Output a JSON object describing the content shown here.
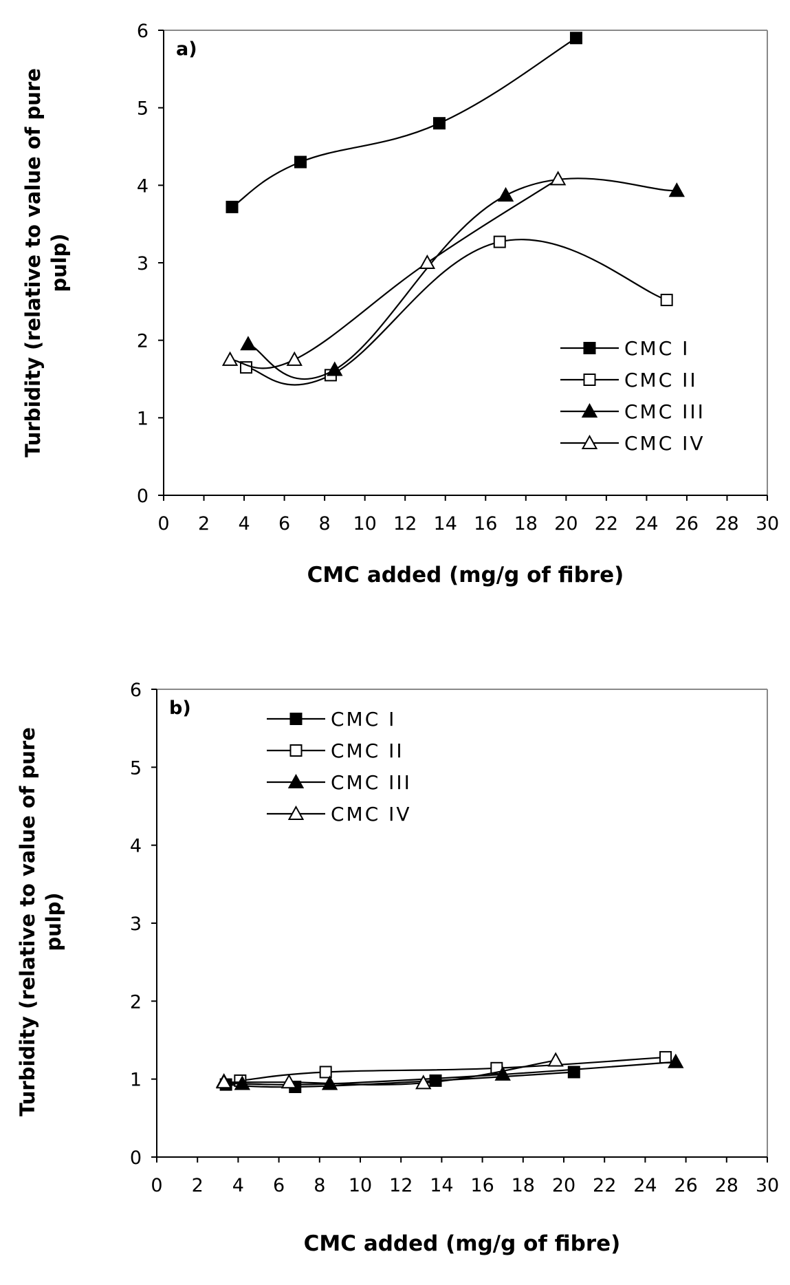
{
  "chart_data": [
    {
      "type": "line",
      "panel_label": "a)",
      "xlabel": "CMC added (mg/g of fibre)",
      "ylabel_lines": [
        "Turbidity (relative to value of pure",
        "pulp)"
      ],
      "xlim": [
        0,
        30
      ],
      "ylim": [
        0,
        6
      ],
      "xticks": [
        "0",
        "2",
        "4",
        "6",
        "8",
        "10",
        "12",
        "14",
        "16",
        "18",
        "20",
        "22",
        "24",
        "26",
        "28",
        "30"
      ],
      "yticks": [
        "0",
        "1",
        "2",
        "3",
        "4",
        "5",
        "6"
      ],
      "grid": false,
      "legend_position": "lower-right",
      "series": [
        {
          "name": "CMC I",
          "marker": "square-filled",
          "x": [
            3.4,
            6.8,
            13.7,
            20.5
          ],
          "y": [
            3.72,
            4.3,
            4.8,
            5.9
          ]
        },
        {
          "name": "CMC II",
          "marker": "square-open",
          "x": [
            4.1,
            8.3,
            16.7,
            25.0
          ],
          "y": [
            1.65,
            1.55,
            3.27,
            2.52
          ]
        },
        {
          "name": "CMC III",
          "marker": "triangle-filled",
          "x": [
            4.2,
            8.5,
            17.0,
            25.5
          ],
          "y": [
            1.95,
            1.62,
            3.87,
            3.93
          ]
        },
        {
          "name": "CMC IV",
          "marker": "triangle-open",
          "x": [
            3.3,
            6.5,
            13.1,
            19.6
          ],
          "y": [
            1.75,
            1.75,
            3.0,
            4.08
          ]
        }
      ]
    },
    {
      "type": "line",
      "panel_label": "b)",
      "xlabel": "CMC added (mg/g of fibre)",
      "ylabel_lines": [
        "Turbidity (relative to value of pure",
        "pulp)"
      ],
      "xlim": [
        0,
        30
      ],
      "ylim": [
        0,
        6
      ],
      "xticks": [
        "0",
        "2",
        "4",
        "6",
        "8",
        "10",
        "12",
        "14",
        "16",
        "18",
        "20",
        "22",
        "24",
        "26",
        "28",
        "30"
      ],
      "yticks": [
        "0",
        "1",
        "2",
        "3",
        "4",
        "5",
        "6"
      ],
      "grid": false,
      "legend_position": "top-left",
      "series": [
        {
          "name": "CMC I",
          "marker": "square-filled",
          "x": [
            3.4,
            6.8,
            13.7,
            20.5
          ],
          "y": [
            0.93,
            0.9,
            0.98,
            1.09
          ]
        },
        {
          "name": "CMC II",
          "marker": "square-open",
          "x": [
            4.1,
            8.3,
            16.7,
            25.0
          ],
          "y": [
            0.98,
            1.09,
            1.14,
            1.28
          ]
        },
        {
          "name": "CMC III",
          "marker": "triangle-filled",
          "x": [
            3.3,
            4.2,
            8.5,
            17.0,
            25.5
          ],
          "y": [
            0.97,
            0.94,
            0.94,
            1.06,
            1.22
          ]
        },
        {
          "name": "CMC IV",
          "marker": "triangle-open",
          "x": [
            3.3,
            6.5,
            13.1,
            19.6
          ],
          "y": [
            0.96,
            0.96,
            0.95,
            1.24
          ]
        }
      ]
    }
  ]
}
